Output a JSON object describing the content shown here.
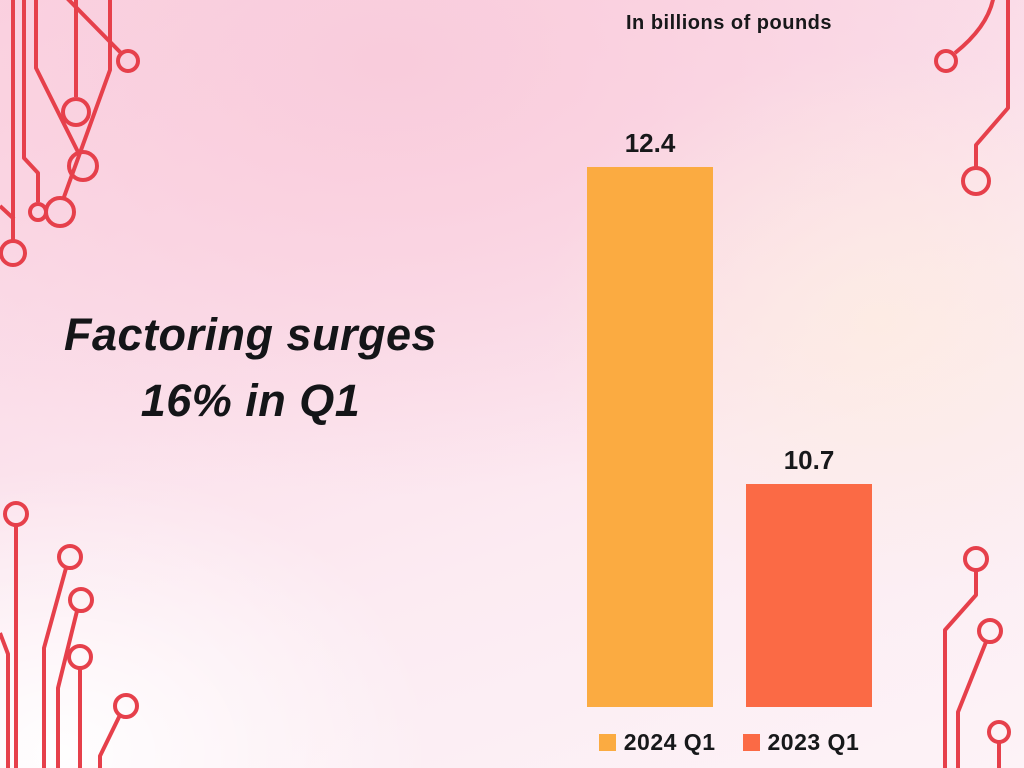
{
  "title": {
    "line1": "Factoring surges",
    "line2": "16% in Q1"
  },
  "chart": {
    "units_label": "In billions of pounds"
  },
  "chart_data": {
    "type": "bar",
    "title": "Factoring surges 16% in Q1",
    "subtitle": "In billions of pounds",
    "categories": [
      "2024 Q1",
      "2023 Q1"
    ],
    "values": [
      12.4,
      10.7
    ],
    "colors": [
      "#FBAB41",
      "#FB6A45"
    ],
    "ylim": [
      9.5,
      12.4
    ],
    "grid": false,
    "axes_visible": false,
    "legend_position": "bottom"
  },
  "decor": {
    "circuit_color": "#E6404B",
    "text_color": "#17181A"
  }
}
